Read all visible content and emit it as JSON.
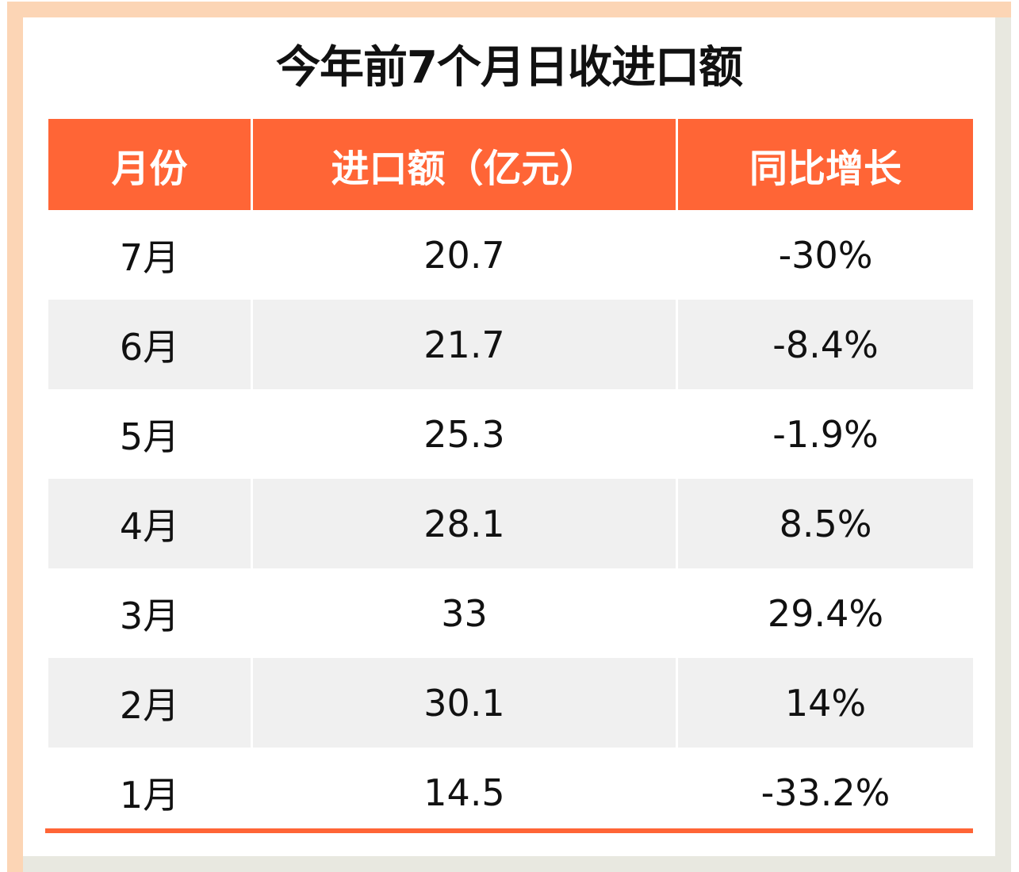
{
  "title": "今年前7个月日收进口额",
  "colors": {
    "header": "#ff6536",
    "alt_row": "#f0f0f0",
    "frame_top_left": "#fcd5b5",
    "frame_bottom_right": "#e8e8e0"
  },
  "chart_data": {
    "type": "table",
    "title": "今年前7个月日收进口额",
    "columns": [
      "月份",
      "进口额（亿元）",
      "同比增长"
    ],
    "rows": [
      [
        "7月",
        "20.7",
        "-30%"
      ],
      [
        "6月",
        "21.7",
        "-8.4%"
      ],
      [
        "5月",
        "25.3",
        "-1.9%"
      ],
      [
        "4月",
        "28.1",
        "8.5%"
      ],
      [
        "3月",
        "33",
        "29.4%"
      ],
      [
        "2月",
        "30.1",
        "14%"
      ],
      [
        "1月",
        "14.5",
        "-33.2%"
      ]
    ]
  }
}
